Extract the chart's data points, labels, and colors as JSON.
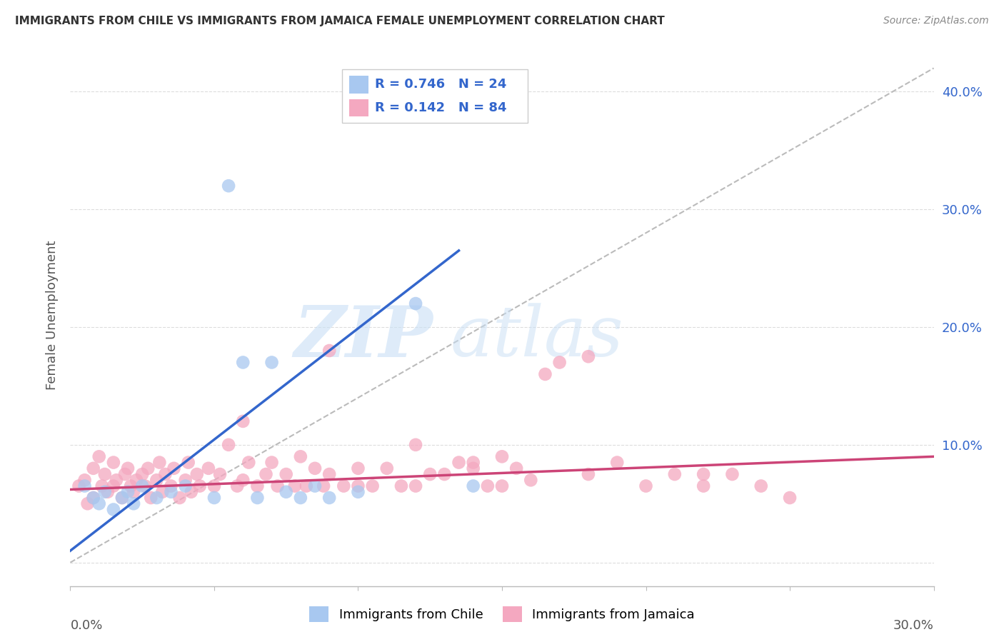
{
  "title": "IMMIGRANTS FROM CHILE VS IMMIGRANTS FROM JAMAICA FEMALE UNEMPLOYMENT CORRELATION CHART",
  "source": "Source: ZipAtlas.com",
  "ylabel": "Female Unemployment",
  "xlim": [
    0.0,
    0.3
  ],
  "ylim": [
    -0.02,
    0.44
  ],
  "yticks": [
    0.0,
    0.1,
    0.2,
    0.3,
    0.4
  ],
  "ytick_labels": [
    "",
    "10.0%",
    "20.0%",
    "30.0%",
    "40.0%"
  ],
  "chile_R": 0.746,
  "chile_N": 24,
  "jamaica_R": 0.142,
  "jamaica_N": 84,
  "chile_color": "#a8c8f0",
  "jamaica_color": "#f4a8c0",
  "chile_line_color": "#3366cc",
  "jamaica_line_color": "#cc4477",
  "ref_line_color": "#bbbbbb",
  "background_color": "#ffffff",
  "grid_color": "#dddddd",
  "watermark_zip": "ZIP",
  "watermark_atlas": "atlas",
  "chile_line_x": [
    0.0,
    0.135
  ],
  "chile_line_y": [
    0.01,
    0.265
  ],
  "jamaica_line_x": [
    0.0,
    0.3
  ],
  "jamaica_line_y": [
    0.062,
    0.09
  ],
  "ref_line_x": [
    0.0,
    0.3
  ],
  "ref_line_y": [
    0.0,
    0.42
  ],
  "chile_scatter_x": [
    0.005,
    0.008,
    0.01,
    0.012,
    0.015,
    0.018,
    0.02,
    0.022,
    0.025,
    0.03,
    0.035,
    0.04,
    0.05,
    0.055,
    0.06,
    0.065,
    0.07,
    0.075,
    0.08,
    0.085,
    0.09,
    0.1,
    0.12,
    0.14
  ],
  "chile_scatter_y": [
    0.065,
    0.055,
    0.05,
    0.06,
    0.045,
    0.055,
    0.06,
    0.05,
    0.065,
    0.055,
    0.06,
    0.065,
    0.055,
    0.32,
    0.17,
    0.055,
    0.17,
    0.06,
    0.055,
    0.065,
    0.055,
    0.06,
    0.22,
    0.065
  ],
  "jamaica_scatter_x": [
    0.003,
    0.005,
    0.006,
    0.008,
    0.008,
    0.01,
    0.011,
    0.012,
    0.013,
    0.015,
    0.015,
    0.016,
    0.018,
    0.019,
    0.02,
    0.021,
    0.022,
    0.023,
    0.025,
    0.026,
    0.027,
    0.028,
    0.03,
    0.031,
    0.032,
    0.033,
    0.035,
    0.036,
    0.038,
    0.04,
    0.041,
    0.042,
    0.044,
    0.045,
    0.048,
    0.05,
    0.052,
    0.055,
    0.058,
    0.06,
    0.062,
    0.065,
    0.068,
    0.07,
    0.072,
    0.075,
    0.078,
    0.08,
    0.082,
    0.085,
    0.088,
    0.09,
    0.095,
    0.1,
    0.105,
    0.11,
    0.115,
    0.12,
    0.125,
    0.13,
    0.135,
    0.14,
    0.145,
    0.15,
    0.155,
    0.16,
    0.165,
    0.17,
    0.18,
    0.19,
    0.2,
    0.21,
    0.22,
    0.23,
    0.24,
    0.25,
    0.06,
    0.09,
    0.12,
    0.15,
    0.18,
    0.22,
    0.1,
    0.14
  ],
  "jamaica_scatter_y": [
    0.065,
    0.07,
    0.05,
    0.08,
    0.055,
    0.09,
    0.065,
    0.075,
    0.06,
    0.085,
    0.065,
    0.07,
    0.055,
    0.075,
    0.08,
    0.065,
    0.06,
    0.07,
    0.075,
    0.065,
    0.08,
    0.055,
    0.07,
    0.085,
    0.06,
    0.075,
    0.065,
    0.08,
    0.055,
    0.07,
    0.085,
    0.06,
    0.075,
    0.065,
    0.08,
    0.065,
    0.075,
    0.1,
    0.065,
    0.07,
    0.085,
    0.065,
    0.075,
    0.085,
    0.065,
    0.075,
    0.065,
    0.09,
    0.065,
    0.08,
    0.065,
    0.075,
    0.065,
    0.08,
    0.065,
    0.08,
    0.065,
    0.065,
    0.075,
    0.075,
    0.085,
    0.085,
    0.065,
    0.065,
    0.08,
    0.07,
    0.16,
    0.17,
    0.075,
    0.085,
    0.065,
    0.075,
    0.065,
    0.075,
    0.065,
    0.055,
    0.12,
    0.18,
    0.1,
    0.09,
    0.175,
    0.075,
    0.065,
    0.08
  ]
}
